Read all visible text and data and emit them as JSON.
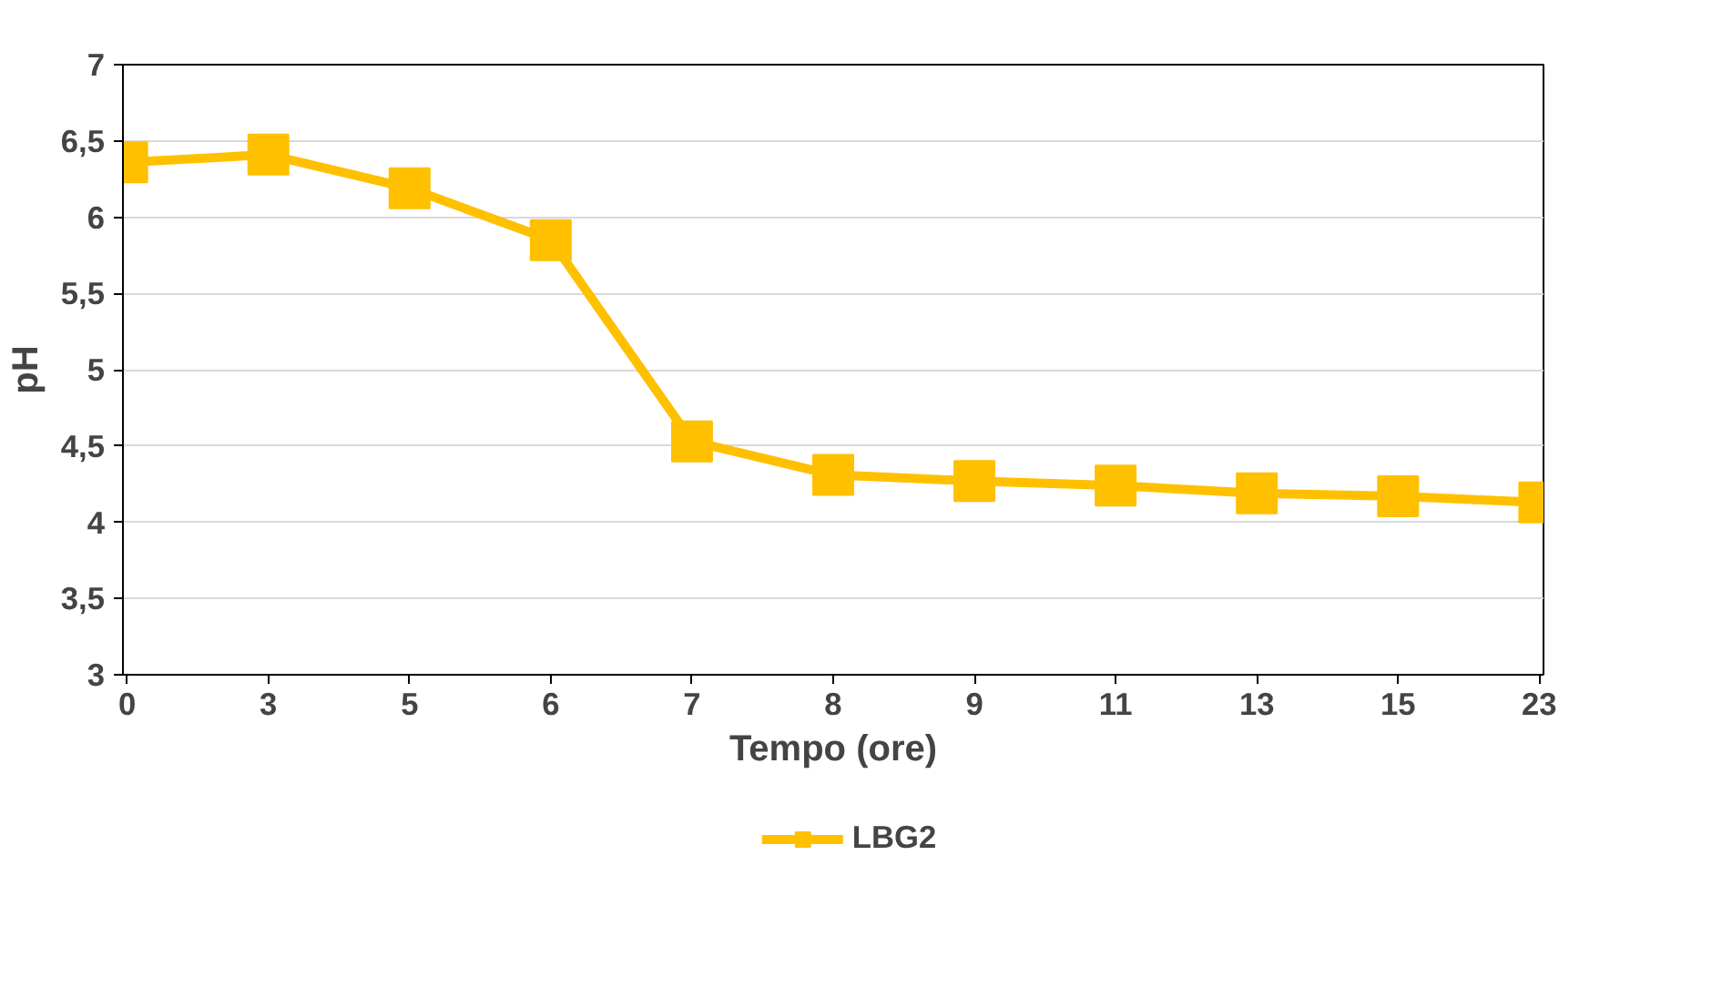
{
  "chart_data": {
    "type": "line",
    "xlabel": "Tempo (ore)",
    "ylabel": "pH",
    "categories": [
      "0",
      "3",
      "5",
      "6",
      "7",
      "8",
      "9",
      "11",
      "13",
      "15",
      "23"
    ],
    "series": [
      {
        "name": "LBG2",
        "color": "#ffc000",
        "values": [
          6.36,
          6.41,
          6.19,
          5.85,
          4.53,
          4.31,
          4.27,
          4.24,
          4.19,
          4.17,
          4.13
        ]
      }
    ],
    "ylim": [
      3,
      7
    ],
    "yticks": [
      3,
      {
        "value": 3.5,
        "label": "3,5"
      },
      4,
      {
        "value": 4.5,
        "label": "4,5"
      },
      5,
      {
        "value": 5.5,
        "label": "5,5"
      },
      6,
      {
        "value": 6.5,
        "label": "6,5"
      },
      7
    ],
    "grid": "y",
    "legend": "bottom",
    "marker": "square",
    "line_style": "solid"
  }
}
